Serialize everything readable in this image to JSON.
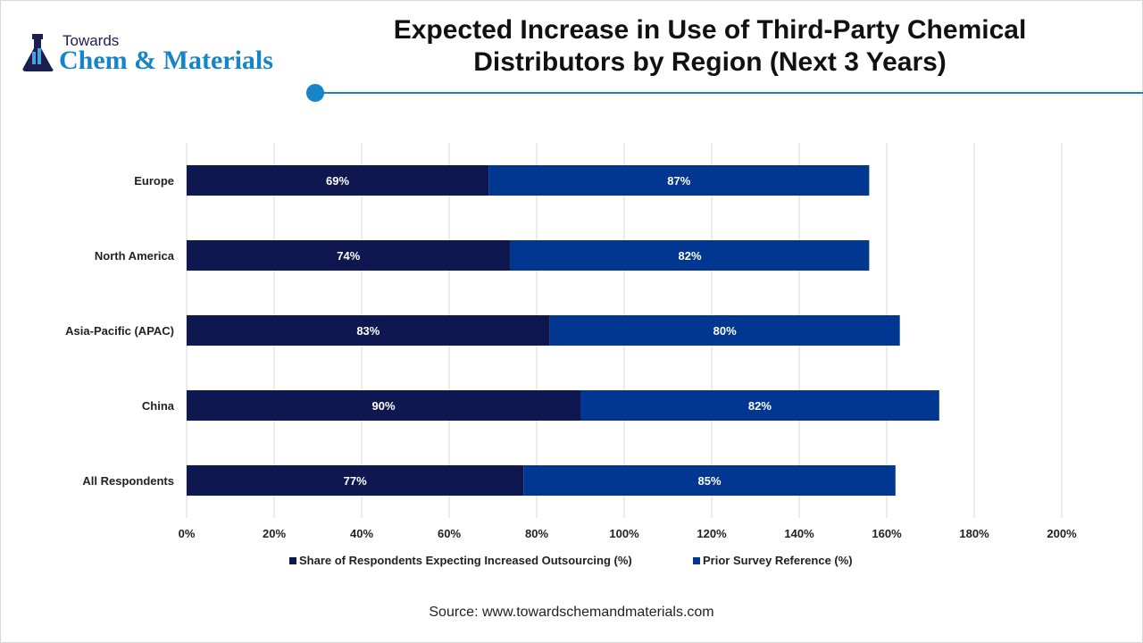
{
  "logo": {
    "line1": "Towards",
    "line2": "Chem & Materials"
  },
  "title": "Expected Increase in Use of Third-Party Chemical Distributors by Region (Next 3 Years)",
  "source": "Source: www.towardschemandmaterials.com",
  "colors": {
    "accent": "#1584c9",
    "series1": "#0f1750",
    "series2": "#023791"
  },
  "chart_data": {
    "type": "bar",
    "orientation": "horizontal",
    "stacked": true,
    "categories": [
      "Europe",
      "North America",
      "Asia-Pacific (APAC)",
      "China",
      "All Respondents"
    ],
    "series": [
      {
        "name": "Share of Respondents Expecting Increased Outsourcing (%)",
        "values": [
          69,
          74,
          83,
          90,
          77
        ],
        "color": "#0f1750"
      },
      {
        "name": "Prior Survey Reference (%)",
        "values": [
          87,
          82,
          80,
          82,
          85
        ],
        "color": "#023791"
      }
    ],
    "xlim": [
      0,
      200
    ],
    "xticks": [
      "0%",
      "20%",
      "40%",
      "60%",
      "80%",
      "100%",
      "120%",
      "140%",
      "160%",
      "180%",
      "200%"
    ],
    "grid": true,
    "legend": "bottom"
  }
}
